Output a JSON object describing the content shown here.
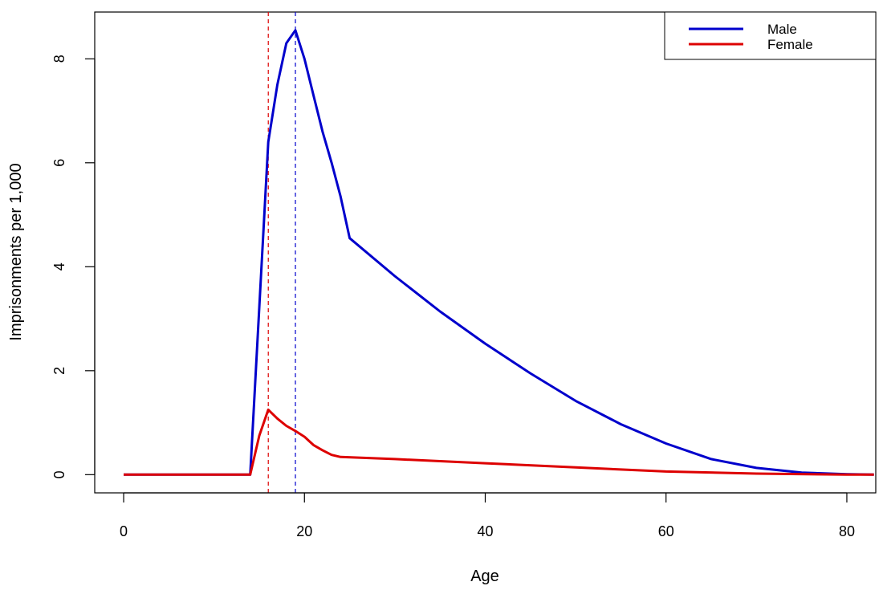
{
  "chart_data": {
    "type": "line",
    "title": "",
    "xlabel": "Age",
    "ylabel": "Imprisonments per 1,000",
    "xlim": [
      -3.2,
      83.2
    ],
    "ylim": [
      -0.35,
      8.9
    ],
    "x_ticks": [
      0,
      20,
      40,
      60,
      80
    ],
    "y_ticks": [
      0,
      2,
      4,
      6,
      8
    ],
    "x_tick_labels": [
      "0",
      "20",
      "40",
      "60",
      "80"
    ],
    "y_tick_labels": [
      "0",
      "2",
      "4",
      "6",
      "8"
    ],
    "grid": false,
    "legend_position": "top-right",
    "series": [
      {
        "name": "Male",
        "color": "#0000cc",
        "peak_age": 19,
        "points": [
          [
            0,
            0
          ],
          [
            14,
            0
          ],
          [
            16,
            6.4
          ],
          [
            17,
            7.5
          ],
          [
            18,
            8.3
          ],
          [
            19,
            8.55
          ],
          [
            20,
            8.0
          ],
          [
            21,
            7.3
          ],
          [
            22,
            6.6
          ],
          [
            23,
            6.0
          ],
          [
            24,
            5.35
          ],
          [
            25,
            4.55
          ],
          [
            30,
            3.82
          ],
          [
            35,
            3.14
          ],
          [
            40,
            2.52
          ],
          [
            45,
            1.95
          ],
          [
            50,
            1.42
          ],
          [
            55,
            0.97
          ],
          [
            60,
            0.6
          ],
          [
            65,
            0.3
          ],
          [
            70,
            0.13
          ],
          [
            75,
            0.04
          ],
          [
            80,
            0.01
          ],
          [
            83,
            0.0
          ]
        ]
      },
      {
        "name": "Female",
        "color": "#dd0000",
        "peak_age": 16,
        "points": [
          [
            0,
            0
          ],
          [
            14,
            0
          ],
          [
            15,
            0.75
          ],
          [
            16,
            1.25
          ],
          [
            17,
            1.08
          ],
          [
            18,
            0.94
          ],
          [
            19,
            0.84
          ],
          [
            20,
            0.73
          ],
          [
            21,
            0.57
          ],
          [
            22,
            0.47
          ],
          [
            23,
            0.38
          ],
          [
            24,
            0.34
          ],
          [
            30,
            0.3
          ],
          [
            40,
            0.22
          ],
          [
            50,
            0.14
          ],
          [
            60,
            0.06
          ],
          [
            70,
            0.02
          ],
          [
            80,
            0.0
          ],
          [
            83,
            0.0
          ]
        ]
      }
    ]
  }
}
